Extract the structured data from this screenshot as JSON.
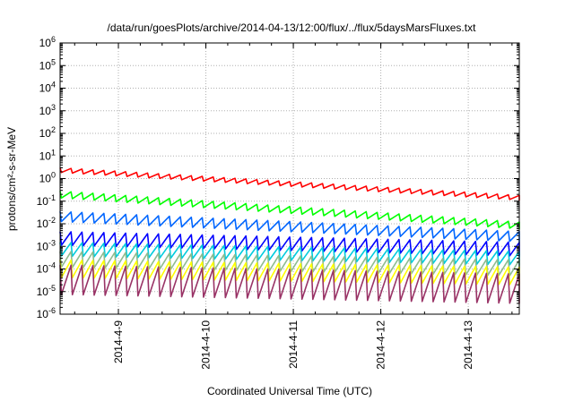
{
  "chart_data": {
    "type": "line",
    "title": "/data/run/goesPlots/archive/2014-04-13/12:00/flux/../flux/5daysMarsFluxes.txt",
    "xlabel": "Coordinated Universal Time (UTC)",
    "ylabel": "protons/cm²-s-sr-MeV",
    "x_range": [
      "2014-04-08 08:00",
      "2014-04-13 14:00"
    ],
    "x_ticks": [
      "2014-4-9",
      "2014-4-10",
      "2014-4-11",
      "2014-4-12",
      "2014-4-13"
    ],
    "y_scale": "log",
    "ylim": [
      1e-06,
      1000000.0
    ],
    "y_tick_exponents": [
      "-6",
      "-5",
      "-4",
      "-3",
      "-2",
      "-1",
      "0",
      "1",
      "2",
      "3",
      "4",
      "5",
      "6"
    ],
    "grid": true,
    "legend": "none",
    "sawtooth_period_hours": 3,
    "series": [
      {
        "color": "#ff0000",
        "start_value": 3.0,
        "end_value": 0.18,
        "drop_factor": 1.6
      },
      {
        "color": "#00ff00",
        "start_value": 0.28,
        "end_value": 0.012,
        "drop_factor": 2.0
      },
      {
        "color": "#0066ff",
        "start_value": 0.035,
        "end_value": 0.0045,
        "drop_factor": 2.8
      },
      {
        "color": "#0000ff",
        "start_value": 0.0045,
        "end_value": 0.0015,
        "drop_factor": 4.0
      },
      {
        "color": "#00ccdd",
        "start_value": 0.0015,
        "end_value": 0.0006,
        "drop_factor": 4.0
      },
      {
        "color": "#8fbc8f",
        "start_value": 0.0006,
        "end_value": 0.00025,
        "drop_factor": 5.0
      },
      {
        "color": "#ffff00",
        "start_value": 0.00025,
        "end_value": 0.00012,
        "drop_factor": 6.0
      },
      {
        "color": "#993366",
        "start_value": 0.00015,
        "end_value": 6e-05,
        "drop_factor": 20.0
      }
    ]
  }
}
